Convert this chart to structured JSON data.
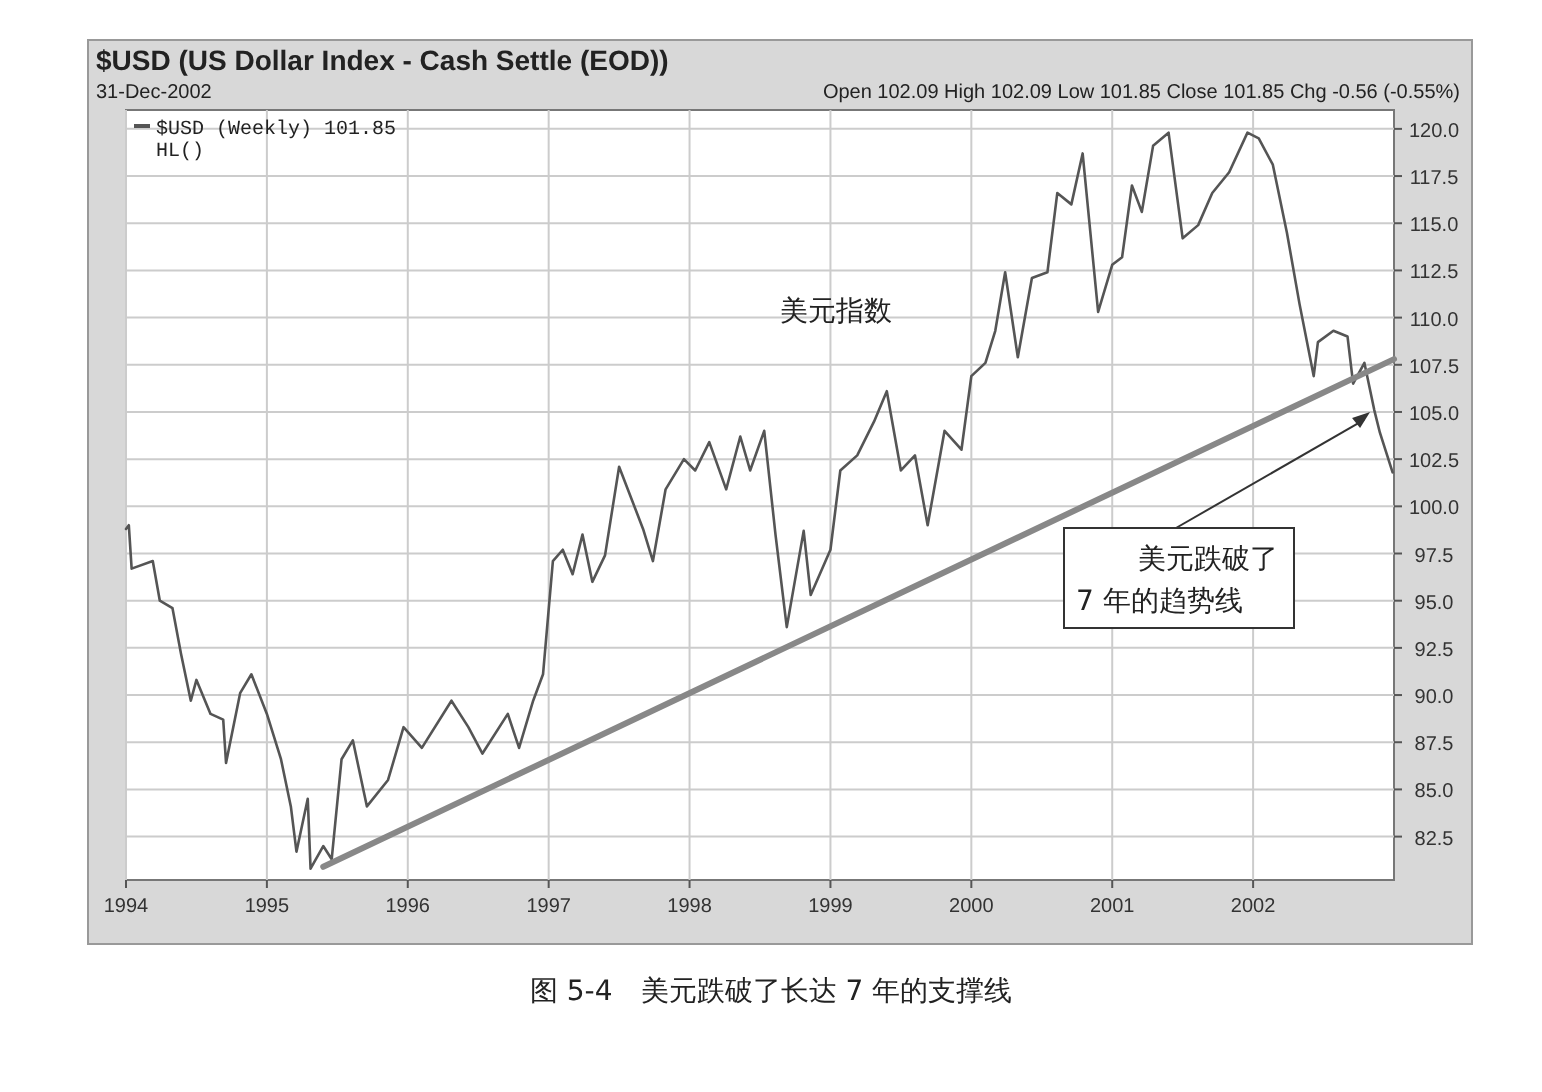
{
  "chart_data": {
    "type": "line",
    "title": "$USD (US Dollar Index - Cash Settle (EOD))",
    "subtitle": "31-Dec-2002",
    "xlim": [
      1994,
      2003
    ],
    "xticks": [
      1994,
      1995,
      1996,
      1997,
      1998,
      1999,
      2000,
      2001,
      2002
    ],
    "ylim": [
      80.2,
      121
    ],
    "yticks": [
      {
        "value": 82.5,
        "label": "82.5"
      },
      {
        "value": 85,
        "label": "85.0"
      },
      {
        "value": 87.5,
        "label": "87.5"
      },
      {
        "value": 90,
        "label": "90.0"
      },
      {
        "value": 92.5,
        "label": "92.5"
      },
      {
        "value": 95,
        "label": "95.0"
      },
      {
        "value": 97.5,
        "label": "97.5"
      },
      {
        "value": 100,
        "label": "100.0"
      },
      {
        "value": 102.5,
        "label": "102.5"
      },
      {
        "value": 105,
        "label": "105.0"
      },
      {
        "value": 107.5,
        "label": "107.5"
      },
      {
        "value": 110,
        "label": "110.0"
      },
      {
        "value": 112.5,
        "label": "112.5"
      },
      {
        "value": 115,
        "label": "115.0"
      },
      {
        "value": 117.5,
        "label": "117.5"
      },
      {
        "value": 120,
        "label": "120.0"
      }
    ],
    "grid": true,
    "legend": "top left",
    "line_style": "solid",
    "series": [
      {
        "name": "$USD (Weekly) 101.85",
        "color": "#555555",
        "x": [
          1994.0,
          1994.02,
          1994.04,
          1994.19,
          1994.24,
          1994.33,
          1994.39,
          1994.46,
          1994.5,
          1994.6,
          1994.69,
          1994.71,
          1994.81,
          1994.89,
          1995.0,
          1995.1,
          1995.17,
          1995.21,
          1995.29,
          1995.31,
          1995.4,
          1995.46,
          1995.53,
          1995.61,
          1995.71,
          1995.86,
          1995.97,
          1996.1,
          1996.31,
          1996.43,
          1996.53,
          1996.71,
          1996.79,
          1996.89,
          1996.96,
          1997.03,
          1997.1,
          1997.17,
          1997.24,
          1997.31,
          1997.4,
          1997.5,
          1997.67,
          1997.74,
          1997.83,
          1997.96,
          1998.04,
          1998.14,
          1998.26,
          1998.36,
          1998.43,
          1998.53,
          1998.61,
          1998.69,
          1998.81,
          1998.86,
          1999.0,
          1999.07,
          1999.19,
          1999.31,
          1999.4,
          1999.5,
          1999.6,
          1999.69,
          1999.81,
          1999.93,
          2000.0,
          2000.1,
          2000.17,
          2000.24,
          2000.33,
          2000.43,
          2000.54,
          2000.61,
          2000.71,
          2000.79,
          2000.9,
          2001.0,
          2001.07,
          2001.14,
          2001.21,
          2001.29,
          2001.4,
          2001.5,
          2001.61,
          2001.71,
          2001.83,
          2001.96,
          2002.04,
          2002.14,
          2002.24,
          2002.33,
          2002.43,
          2002.46,
          2002.57,
          2002.67,
          2002.71,
          2002.79,
          2002.86,
          2002.9,
          2002.99
        ],
        "values": [
          98.8,
          99.0,
          96.7,
          97.1,
          95.0,
          94.6,
          92.2,
          89.7,
          90.8,
          89.0,
          88.7,
          86.4,
          90.1,
          91.1,
          89.0,
          86.6,
          84.1,
          81.7,
          84.5,
          80.8,
          82.0,
          81.3,
          86.6,
          87.6,
          84.1,
          85.5,
          88.3,
          87.2,
          89.7,
          88.3,
          86.9,
          89.0,
          87.2,
          89.7,
          91.1,
          97.1,
          97.7,
          96.4,
          98.5,
          96.0,
          97.4,
          102.1,
          98.8,
          97.1,
          100.9,
          102.5,
          101.9,
          103.4,
          100.9,
          103.7,
          101.9,
          104.0,
          98.5,
          93.6,
          98.7,
          95.3,
          97.7,
          101.9,
          102.7,
          104.5,
          106.1,
          101.9,
          102.7,
          99.0,
          104.0,
          103.0,
          106.9,
          107.6,
          109.3,
          112.4,
          107.9,
          112.1,
          112.4,
          116.6,
          116.0,
          118.7,
          110.3,
          112.8,
          113.2,
          117.0,
          115.6,
          119.1,
          119.8,
          114.2,
          114.9,
          116.6,
          117.7,
          119.8,
          119.5,
          118.1,
          114.5,
          110.7,
          106.9,
          108.7,
          109.3,
          109.0,
          106.5,
          107.6,
          105.1,
          103.9,
          101.8
        ]
      },
      {
        "color": "#888888",
        "x": [
          1995.4,
          2003.0
        ],
        "values": [
          80.9,
          107.8
        ]
      }
    ],
    "annotations": [
      "Open 102.09 High 102.09 Low 101.85 Close 101.85 Chg -0.56 (-0.55%)",
      "HL()",
      "美元指数",
      {
        "text": "美元跌破了\n7 年的趋势线",
        "x": 2002.83,
        "y": 105.0
      },
      "图 5-4　美元跌破了长达 7 年的支撑线"
    ]
  }
}
